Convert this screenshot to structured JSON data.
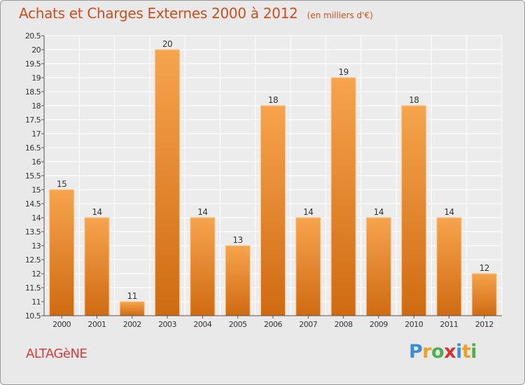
{
  "title": "Achats et Charges Externes 2000 à 2012",
  "unit_note": "(en milliers d'€)",
  "commune": "ALTAGèNE",
  "logo": {
    "text": "Proxiti",
    "letters": [
      "P",
      "r",
      "o",
      "x",
      "i",
      "t",
      "i"
    ],
    "colors": [
      "#3b8fd0",
      "#f0a020",
      "#4caf50",
      "#e03030",
      "#3b8fd0",
      "#f0a020",
      "#4caf50"
    ]
  },
  "colors": {
    "bar_top": "#f6a44c",
    "bar_bottom": "#cf6a12",
    "bar_edge": "#f8c68c",
    "title": "#c8501e",
    "commune": "#d23c3c"
  },
  "chart_data": {
    "type": "bar",
    "title": "Achats et Charges Externes 2000 à 2012",
    "categories": [
      "2000",
      "2001",
      "2002",
      "2003",
      "2004",
      "2005",
      "2006",
      "2007",
      "2008",
      "2009",
      "2010",
      "2011",
      "2012"
    ],
    "values": [
      15,
      14,
      11,
      20,
      14,
      13,
      18,
      14,
      19,
      14,
      18,
      14,
      12
    ],
    "data_labels": [
      "15",
      "14",
      "11",
      "20",
      "14",
      "13",
      "18",
      "14",
      "19",
      "14",
      "18",
      "14",
      "12"
    ],
    "ylim": [
      10.5,
      20.5
    ],
    "yticks": [
      10.5,
      11,
      11.5,
      12,
      12.5,
      13,
      13.5,
      14,
      14.5,
      15,
      15.5,
      16,
      16.5,
      17,
      17.5,
      18,
      18.5,
      19,
      19.5,
      20,
      20.5
    ],
    "ytick_labels": [
      "10.5",
      "11",
      "11.5",
      "12",
      "12.5",
      "13",
      "13.5",
      "14",
      "14.5",
      "15",
      "15.5",
      "16",
      "16.5",
      "17",
      "17.5",
      "18",
      "18.5",
      "19",
      "19.5",
      "20",
      "20.5"
    ],
    "xlabel": "",
    "ylabel": "",
    "grid": true,
    "legend": false
  }
}
